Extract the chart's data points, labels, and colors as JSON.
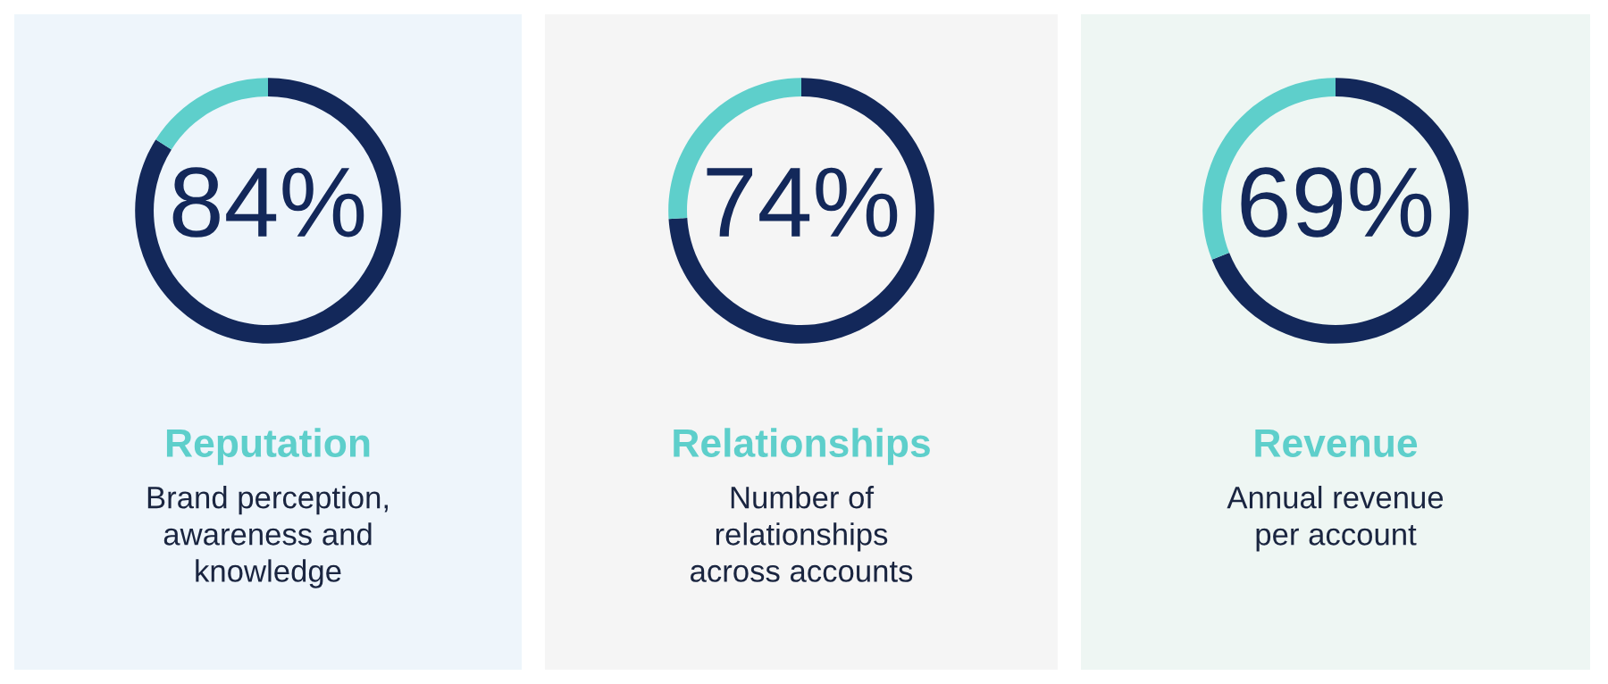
{
  "chart_data": [
    {
      "type": "donut",
      "title": "Reputation",
      "subtitle": "Brand perception,\nawareness and\nknowledge",
      "categories": [
        null,
        null
      ],
      "values": [
        84,
        16
      ],
      "colors": [
        "#13285a",
        "#5ecfcb"
      ],
      "value_labels": [
        "84%",
        null
      ]
    },
    {
      "type": "donut",
      "title": "Relationships",
      "subtitle": "Number of\nrelationships\nacross accounts",
      "categories": [
        null,
        null
      ],
      "values": [
        74,
        26
      ],
      "colors": [
        "#13285a",
        "#5ecfcb"
      ],
      "value_labels": [
        "74%",
        null
      ]
    },
    {
      "type": "donut",
      "title": "Revenue",
      "subtitle": "Annual revenue\nper account",
      "categories": [
        null,
        null
      ],
      "values": [
        69,
        31
      ],
      "colors": [
        "#13285a",
        "#5ecfcb"
      ],
      "value_labels": [
        "69%",
        null
      ]
    }
  ]
}
